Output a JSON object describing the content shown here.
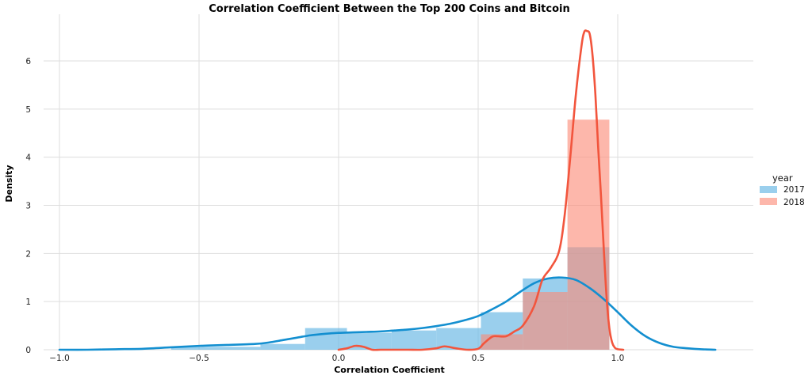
{
  "chart_data": {
    "type": "area",
    "title": "Correlation Coefficient Between the Top 200 Coins and Bitcoin",
    "xlabel": "Correlation Coefficient",
    "ylabel": "Density",
    "xlim": [
      -1.0,
      1.38
    ],
    "ylim": [
      0,
      6.9
    ],
    "x_ticks": [
      -1.0,
      -0.5,
      0.0,
      0.5,
      1.0
    ],
    "x_tick_labels": [
      "−1.0",
      "−0.5",
      "0.0",
      "0.5",
      "1.0"
    ],
    "y_ticks": [
      0,
      1,
      2,
      3,
      4,
      5,
      6
    ],
    "y_tick_labels": [
      "0",
      "1",
      "2",
      "3",
      "4",
      "5",
      "6"
    ],
    "grid": true,
    "legend": {
      "title": "year",
      "position": "right",
      "entries": [
        "2017",
        "2018"
      ]
    },
    "histograms": [
      {
        "name": "2017",
        "color": "#6ab8e4",
        "opacity": 0.68,
        "bins": [
          {
            "x0": -0.6,
            "x1": -0.28,
            "y": 0.06
          },
          {
            "x0": -0.28,
            "x1": -0.12,
            "y": 0.12
          },
          {
            "x0": -0.12,
            "x1": 0.03,
            "y": 0.45
          },
          {
            "x0": 0.03,
            "x1": 0.19,
            "y": 0.35
          },
          {
            "x0": 0.19,
            "x1": 0.35,
            "y": 0.4
          },
          {
            "x0": 0.35,
            "x1": 0.51,
            "y": 0.45
          },
          {
            "x0": 0.51,
            "x1": 0.66,
            "y": 0.78
          },
          {
            "x0": 0.66,
            "x1": 0.82,
            "y": 1.48
          },
          {
            "x0": 0.82,
            "x1": 0.97,
            "y": 2.13
          }
        ]
      },
      {
        "name": "2018",
        "color": "#fc8b78",
        "opacity": 0.62,
        "bins": [
          {
            "x0": 0.51,
            "x1": 0.66,
            "y": 0.32
          },
          {
            "x0": 0.66,
            "x1": 0.82,
            "y": 1.2
          },
          {
            "x0": 0.82,
            "x1": 0.97,
            "y": 4.78
          }
        ]
      }
    ],
    "series": [
      {
        "name": "2017",
        "color": "#138fd0",
        "x": [
          -1.0,
          -0.9,
          -0.8,
          -0.7,
          -0.6,
          -0.5,
          -0.4,
          -0.3,
          -0.25,
          -0.2,
          -0.15,
          -0.1,
          -0.05,
          0.0,
          0.05,
          0.1,
          0.15,
          0.2,
          0.25,
          0.3,
          0.35,
          0.4,
          0.45,
          0.5,
          0.55,
          0.6,
          0.65,
          0.7,
          0.75,
          0.8,
          0.85,
          0.9,
          0.95,
          1.0,
          1.05,
          1.1,
          1.15,
          1.2,
          1.25,
          1.3,
          1.35
        ],
        "y": [
          0.0,
          0.0,
          0.01,
          0.02,
          0.05,
          0.08,
          0.1,
          0.12,
          0.15,
          0.2,
          0.25,
          0.3,
          0.33,
          0.35,
          0.36,
          0.37,
          0.38,
          0.4,
          0.42,
          0.45,
          0.49,
          0.54,
          0.61,
          0.7,
          0.84,
          1.0,
          1.2,
          1.38,
          1.48,
          1.5,
          1.45,
          1.28,
          1.05,
          0.78,
          0.5,
          0.28,
          0.14,
          0.06,
          0.03,
          0.01,
          0.0
        ]
      },
      {
        "name": "2018",
        "color": "#f2553d",
        "x": [
          0.0,
          0.03,
          0.06,
          0.09,
          0.12,
          0.15,
          0.2,
          0.25,
          0.3,
          0.35,
          0.38,
          0.42,
          0.46,
          0.5,
          0.52,
          0.55,
          0.57,
          0.6,
          0.63,
          0.66,
          0.7,
          0.73,
          0.76,
          0.79,
          0.81,
          0.83,
          0.85,
          0.87,
          0.88,
          0.89,
          0.9,
          0.91,
          0.92,
          0.93,
          0.94,
          0.95,
          0.96,
          0.97,
          0.98,
          0.99,
          1.0,
          1.02
        ],
        "y": [
          0.0,
          0.03,
          0.08,
          0.06,
          0.0,
          0.0,
          0.0,
          0.0,
          0.0,
          0.03,
          0.07,
          0.03,
          0.0,
          0.02,
          0.13,
          0.27,
          0.28,
          0.28,
          0.38,
          0.5,
          0.9,
          1.45,
          1.7,
          2.05,
          2.8,
          4.0,
          5.3,
          6.3,
          6.6,
          6.62,
          6.55,
          6.1,
          5.3,
          4.2,
          3.2,
          2.1,
          1.1,
          0.45,
          0.15,
          0.04,
          0.01,
          0.0
        ]
      }
    ]
  }
}
